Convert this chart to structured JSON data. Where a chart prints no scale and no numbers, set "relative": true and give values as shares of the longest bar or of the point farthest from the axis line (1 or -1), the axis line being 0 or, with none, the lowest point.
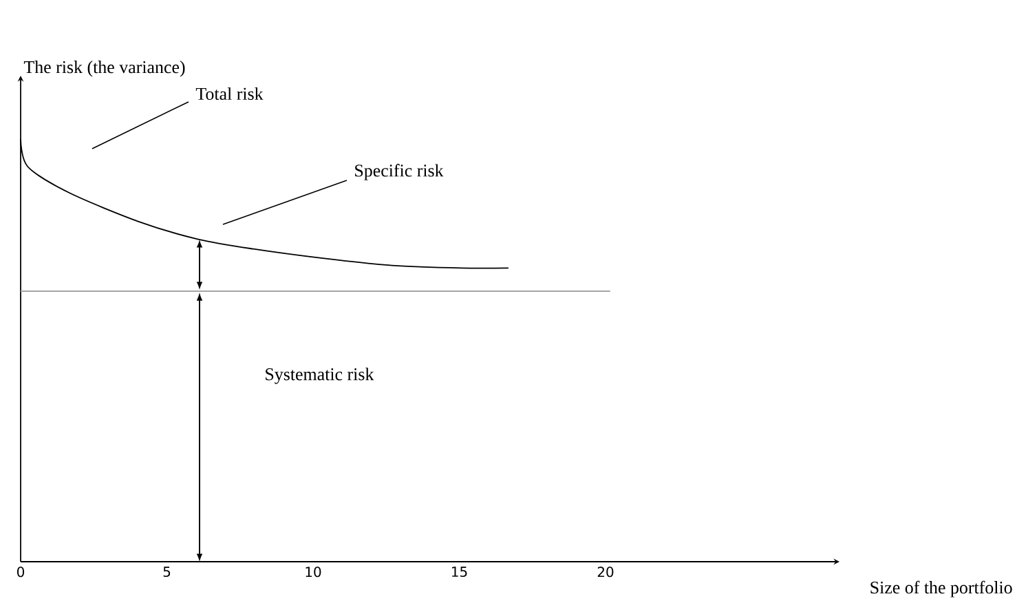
{
  "chart_data": {
    "type": "line",
    "relative": true,
    "xlabel": "Size of the portfolio",
    "ylabel": "The risk (the variance)",
    "xlim": [
      0,
      28
    ],
    "xticks": [
      0,
      5,
      10,
      15,
      20
    ],
    "series": [
      {
        "color": "#000000",
        "x": [
          0,
          0.24,
          1.66,
          4.03,
          6.07,
          7.96,
          10.33,
          12.7,
          15.07,
          16.68
        ],
        "values": [
          1.0,
          0.935,
          0.873,
          0.805,
          0.763,
          0.74,
          0.718,
          0.701,
          0.695,
          0.695
        ]
      }
    ],
    "ref_lines": [
      {
        "axis": "y",
        "value": 0.64,
        "color": "#a6a6a6"
      }
    ],
    "annotations": [
      "Total risk",
      "Specific risk",
      "Systematic risk"
    ]
  }
}
